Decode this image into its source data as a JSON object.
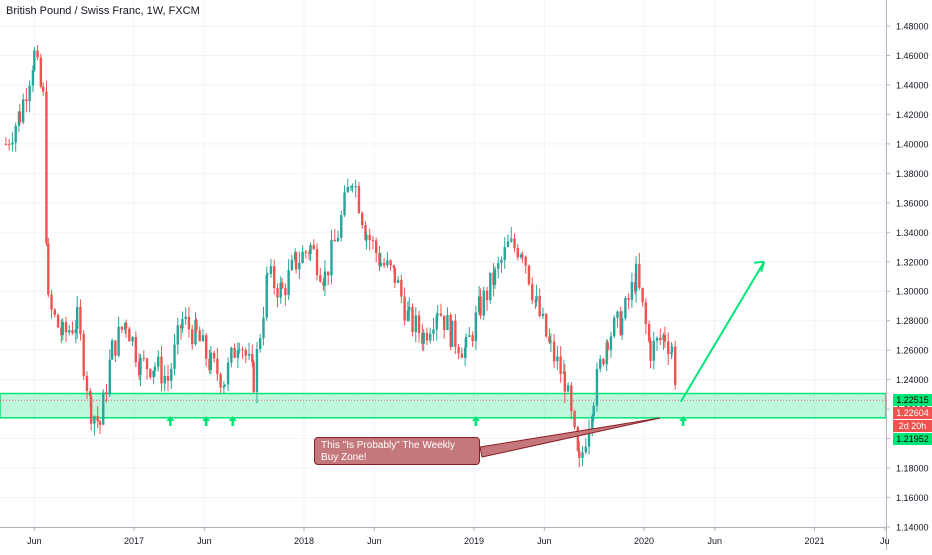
{
  "header": {
    "title": "British Pound / Swiss Franc, 1W, FXCM"
  },
  "chart_data": {
    "type": "candlestick",
    "xlabel": "",
    "ylabel": "",
    "ylim": [
      1.14,
      1.49
    ],
    "y_ticks": [
      "1.48000",
      "1.46000",
      "1.44000",
      "1.42000",
      "1.40000",
      "1.38000",
      "1.36000",
      "1.34000",
      "1.32000",
      "1.30000",
      "1.28000",
      "1.26000",
      "1.24000",
      "1.22000",
      "1.20000",
      "1.18000",
      "1.16000",
      "1.14000"
    ],
    "y_tick_values": [
      1.48,
      1.46,
      1.44,
      1.42,
      1.4,
      1.38,
      1.36,
      1.34,
      1.32,
      1.3,
      1.28,
      1.26,
      1.24,
      1.22,
      1.2,
      1.18,
      1.16,
      1.14
    ],
    "x_ticks": [
      "Jun",
      "2017",
      "Jun",
      "2018",
      "Jun",
      "2019",
      "Jun",
      "2020",
      "Jun",
      "2021",
      "Ju"
    ],
    "x_tick_dates": [
      "2016-06",
      "2017-01",
      "2017-06",
      "2018-01",
      "2018-06",
      "2019-01",
      "2019-06",
      "2020-01",
      "2020-06",
      "2021-01",
      "2021-06"
    ],
    "series": [
      {
        "type": "close-path",
        "points": [
          [
            "2016-04-01",
            1.4
          ],
          [
            "2016-05-01",
            1.42
          ],
          [
            "2016-06-01",
            1.46
          ],
          [
            "2016-06-20",
            1.43
          ],
          [
            "2016-07-01",
            1.29
          ],
          [
            "2016-08-01",
            1.27
          ],
          [
            "2016-09-01",
            1.28
          ],
          [
            "2016-10-01",
            1.22
          ],
          [
            "2016-10-20",
            1.21
          ],
          [
            "2016-11-15",
            1.26
          ],
          [
            "2016-12-15",
            1.28
          ],
          [
            "2017-01-15",
            1.25
          ],
          [
            "2017-02-15",
            1.25
          ],
          [
            "2017-03-15",
            1.24
          ],
          [
            "2017-04-15",
            1.28
          ],
          [
            "2017-05-15",
            1.27
          ],
          [
            "2017-06-15",
            1.25
          ],
          [
            "2017-07-15",
            1.24
          ],
          [
            "2017-08-15",
            1.27
          ],
          [
            "2017-09-15",
            1.24
          ],
          [
            "2017-10-15",
            1.31
          ],
          [
            "2017-11-15",
            1.3
          ],
          [
            "2017-12-15",
            1.32
          ],
          [
            "2018-01-15",
            1.33
          ],
          [
            "2018-02-15",
            1.31
          ],
          [
            "2018-03-15",
            1.34
          ],
          [
            "2018-04-15",
            1.38
          ],
          [
            "2018-05-15",
            1.34
          ],
          [
            "2018-06-15",
            1.32
          ],
          [
            "2018-07-15",
            1.31
          ],
          [
            "2018-08-15",
            1.28
          ],
          [
            "2018-09-15",
            1.27
          ],
          [
            "2018-10-15",
            1.29
          ],
          [
            "2018-11-15",
            1.27
          ],
          [
            "2018-12-15",
            1.26
          ],
          [
            "2019-01-15",
            1.29
          ],
          [
            "2019-02-15",
            1.31
          ],
          [
            "2019-03-15",
            1.33
          ],
          [
            "2019-04-15",
            1.33
          ],
          [
            "2019-05-15",
            1.29
          ],
          [
            "2019-06-15",
            1.26
          ],
          [
            "2019-07-15",
            1.24
          ],
          [
            "2019-08-15",
            1.18
          ],
          [
            "2019-09-15",
            1.23
          ],
          [
            "2019-10-15",
            1.27
          ],
          [
            "2019-11-15",
            1.28
          ],
          [
            "2019-12-15",
            1.31
          ],
          [
            "2020-01-15",
            1.26
          ],
          [
            "2020-02-15",
            1.27
          ],
          [
            "2020-03-01",
            1.26
          ],
          [
            "2020-03-15",
            1.226
          ]
        ]
      }
    ],
    "zone": {
      "high": 1.22515,
      "low": 1.21952,
      "label_high": "1.22515",
      "label_low": "1.21952"
    },
    "arrow_up_dates": [
      "2017-03-20",
      "2017-06-05",
      "2017-08-01",
      "2019-01-05",
      "2020-03-25"
    ],
    "projection": {
      "from": [
        "2020-03-20",
        1.225
      ],
      "to": [
        "2020-09-15",
        1.32
      ]
    },
    "last_price": {
      "value": 1.22604,
      "label": "1.22604",
      "time_label": "2d 20h",
      "color": "#ef5350"
    },
    "annotations": [
      "This \"Is Probably\" The Weekly Buy Zone!"
    ],
    "grid": true,
    "legend": "none"
  }
}
